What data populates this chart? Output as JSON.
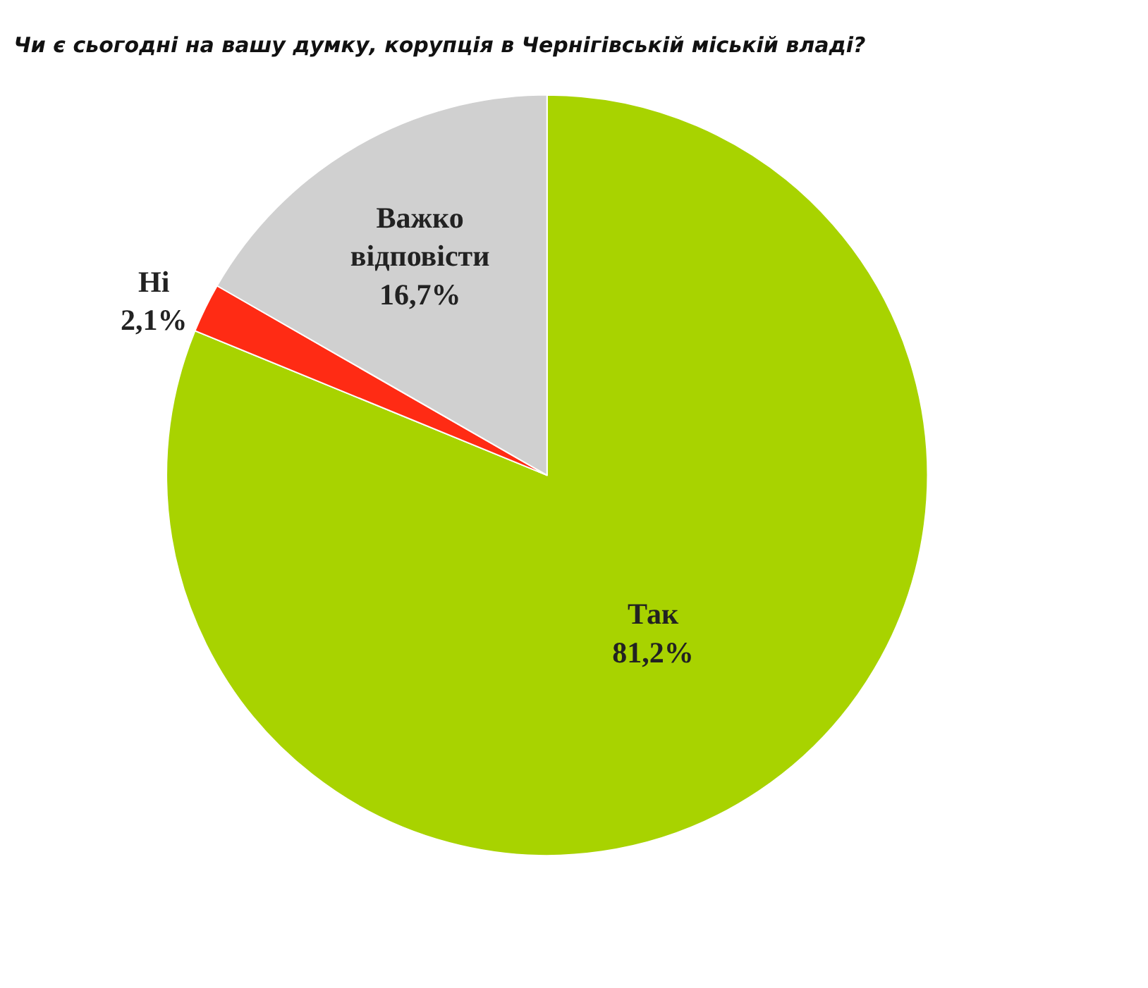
{
  "chart_data": {
    "type": "pie",
    "title": "Чи є сьогодні на вашу думку, корупція в Чернігівській міській владі?",
    "categories": [
      "Так",
      "Ні",
      "Важко відповісти"
    ],
    "values": [
      81.2,
      2.1,
      16.7
    ],
    "value_labels": [
      "81,2%",
      "2,1%",
      "16,7%"
    ],
    "colors": [
      "#a8d300",
      "#ff2b14",
      "#d0d0d0"
    ],
    "legend": false
  }
}
